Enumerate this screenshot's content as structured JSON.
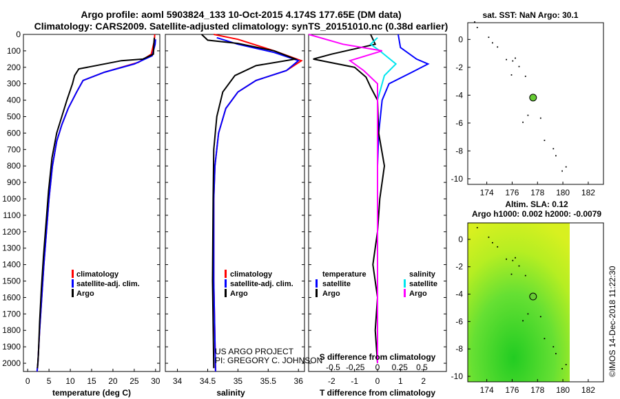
{
  "title_line1": "Argo profile: aoml 5903824_133 10-Oct-2015 4.174S 177.65E (DM data)",
  "title_line2": "Climatology: CARS2009. Satellite-adjusted climatology: synTS_20151010.nc (0.38d earlier)",
  "depth_ticks": [
    "0",
    "100",
    "200",
    "300",
    "400",
    "500",
    "600",
    "700",
    "800",
    "900",
    "1000",
    "1100",
    "1200",
    "1300",
    "1400",
    "1500",
    "1600",
    "1700",
    "1800",
    "1900",
    "2000"
  ],
  "colors": {
    "climatology": "#ff0000",
    "satellite": "#0000ff",
    "argo": "#000000",
    "sal_satellite": "#00e5ee",
    "sal_argo": "#ff00ff"
  },
  "watermark": "©IMOS 14-Dec-2018 11:22:30",
  "credit": {
    "line1": "US ARGO PROJECT",
    "line2": "PI: GREGORY C. JOHNSON"
  },
  "chart_data": [
    {
      "type": "line",
      "name": "temperature",
      "xlabel": "temperature (deg C)",
      "xlim": [
        -1,
        31
      ],
      "ylim": [
        0,
        2050
      ],
      "xticks": [
        0,
        5,
        10,
        15,
        20,
        25,
        30
      ],
      "legend": [
        "climatology",
        "satellite-adj. clim.",
        "Argo"
      ],
      "series": [
        {
          "name": "climatology",
          "points": [
            [
              29.8,
              0
            ],
            [
              29.7,
              40
            ],
            [
              29.0,
              120
            ],
            [
              26,
              170
            ],
            [
              18,
              230
            ],
            [
              13,
              280
            ],
            [
              11.5,
              350
            ],
            [
              9.5,
              450
            ],
            [
              8,
              550
            ],
            [
              6.8,
              650
            ],
            [
              5.8,
              800
            ],
            [
              5,
              1000
            ],
            [
              4.4,
              1200
            ],
            [
              3.8,
              1400
            ],
            [
              3.3,
              1600
            ],
            [
              2.8,
              1800
            ],
            [
              2.4,
              2000
            ],
            [
              2.2,
              2050
            ]
          ]
        },
        {
          "name": "satellite-adj. clim.",
          "points": [
            [
              30.0,
              30
            ],
            [
              29.9,
              60
            ],
            [
              29.2,
              130
            ],
            [
              25,
              180
            ],
            [
              18,
              230
            ],
            [
              13,
              280
            ],
            [
              11.5,
              350
            ],
            [
              9.5,
              450
            ],
            [
              8,
              550
            ],
            [
              6.8,
              650
            ],
            [
              5.8,
              800
            ],
            [
              5,
              1000
            ],
            [
              4.4,
              1200
            ],
            [
              3.8,
              1400
            ],
            [
              3.3,
              1600
            ],
            [
              2.8,
              1800
            ],
            [
              2.4,
              2000
            ],
            [
              2.2,
              2050
            ]
          ]
        },
        {
          "name": "Argo",
          "points": [
            [
              29.7,
              20
            ],
            [
              29.6,
              60
            ],
            [
              29.5,
              120
            ],
            [
              27,
              150
            ],
            [
              22,
              160
            ],
            [
              17,
              185
            ],
            [
              12,
              210
            ],
            [
              11,
              250
            ],
            [
              10.5,
              300
            ],
            [
              9.2,
              400
            ],
            [
              8,
              500
            ],
            [
              6.8,
              600
            ],
            [
              5.7,
              750
            ],
            [
              4.9,
              950
            ],
            [
              4.3,
              1150
            ],
            [
              3.7,
              1350
            ],
            [
              3.2,
              1550
            ],
            [
              2.8,
              1750
            ],
            [
              2.5,
              1950
            ],
            [
              2.3,
              2030
            ]
          ]
        }
      ]
    },
    {
      "type": "line",
      "name": "salinity",
      "xlabel": "salinity",
      "xlim": [
        33.8,
        36.1
      ],
      "ylim": [
        0,
        2050
      ],
      "xticks": [
        34,
        34.5,
        35,
        35.5,
        36
      ],
      "legend": [
        "climatology",
        "satellite-adj. clim.",
        "Argo"
      ],
      "series": [
        {
          "name": "climatology",
          "points": [
            [
              34.6,
              0
            ],
            [
              35.0,
              30
            ],
            [
              35.6,
              100
            ],
            [
              36.05,
              160
            ],
            [
              35.8,
              220
            ],
            [
              35.3,
              280
            ],
            [
              35.0,
              350
            ],
            [
              34.8,
              450
            ],
            [
              34.68,
              600
            ],
            [
              34.62,
              800
            ],
            [
              34.6,
              1000
            ],
            [
              34.6,
              1500
            ],
            [
              34.63,
              2050
            ]
          ]
        },
        {
          "name": "satellite-adj. clim.",
          "points": [
            [
              34.65,
              20
            ],
            [
              35.0,
              60
            ],
            [
              35.6,
              110
            ],
            [
              36.0,
              160
            ],
            [
              35.8,
              220
            ],
            [
              35.3,
              280
            ],
            [
              35.0,
              350
            ],
            [
              34.8,
              450
            ],
            [
              34.68,
              600
            ],
            [
              34.62,
              800
            ],
            [
              34.6,
              1000
            ],
            [
              34.6,
              1500
            ],
            [
              34.63,
              2050
            ]
          ]
        },
        {
          "name": "Argo",
          "points": [
            [
              34.4,
              0
            ],
            [
              34.5,
              35
            ],
            [
              35.0,
              55
            ],
            [
              35.6,
              100
            ],
            [
              35.95,
              150
            ],
            [
              35.3,
              190
            ],
            [
              34.95,
              250
            ],
            [
              34.75,
              350
            ],
            [
              34.65,
              500
            ],
            [
              34.6,
              700
            ],
            [
              34.59,
              1000
            ],
            [
              34.58,
              1500
            ],
            [
              34.6,
              2030
            ]
          ]
        }
      ]
    },
    {
      "type": "line",
      "name": "difference",
      "xlabel": "T difference from climatology",
      "xlabel2": "S difference from climatology",
      "xlim": [
        -3,
        3
      ],
      "ylim": [
        0,
        2050
      ],
      "xticks": [
        -2,
        -1,
        0,
        1,
        2
      ],
      "sticks": [
        -0.5,
        -0.25,
        0,
        0.25,
        0.5
      ],
      "legend": {
        "temperature_title": "temperature",
        "salinity_title": "salinity",
        "t_items": [
          "satellite",
          "Argo"
        ],
        "s_items": [
          "satellite",
          "Argo"
        ]
      },
      "series": [
        {
          "name": "T satellite",
          "points": [
            [
              0.9,
              0
            ],
            [
              1.0,
              80
            ],
            [
              1.7,
              150
            ],
            [
              2.2,
              180
            ],
            [
              1.5,
              230
            ],
            [
              0.5,
              300
            ],
            [
              0.2,
              400
            ],
            [
              0.05,
              600
            ],
            [
              0,
              800
            ],
            [
              0,
              2000
            ]
          ]
        },
        {
          "name": "T Argo",
          "points": [
            [
              -0.3,
              0
            ],
            [
              -0.1,
              60
            ],
            [
              -2.0,
              120
            ],
            [
              -2.8,
              150
            ],
            [
              -1.0,
              200
            ],
            [
              -0.5,
              260
            ],
            [
              -0.3,
              320
            ],
            [
              0,
              400
            ],
            [
              0.05,
              600
            ],
            [
              0.3,
              800
            ],
            [
              0.1,
              1000
            ],
            [
              0,
              1200
            ],
            [
              -0.2,
              1400
            ],
            [
              0,
              1600
            ],
            [
              -0.1,
              1800
            ],
            [
              0,
              2000
            ]
          ]
        },
        {
          "name": "S satellite",
          "points": [
            [
              0,
              20
            ],
            [
              -0.3,
              60
            ],
            [
              0.1,
              100
            ],
            [
              0.8,
              180
            ],
            [
              0.3,
              250
            ],
            [
              0,
              400
            ],
            [
              0,
              2000
            ]
          ]
        },
        {
          "name": "S Argo",
          "points": [
            [
              -3,
              0
            ],
            [
              -1.5,
              60
            ],
            [
              0.2,
              100
            ],
            [
              -1.2,
              160
            ],
            [
              -0.6,
              220
            ],
            [
              0,
              300
            ],
            [
              0,
              2000
            ]
          ]
        }
      ]
    },
    {
      "type": "scatter",
      "name": "sst_map",
      "title": "sat. SST: NaN Argo: 30.1",
      "xlim": [
        172.5,
        183.2
      ],
      "ylim": [
        -10.4,
        1.2
      ],
      "xticks": [
        174,
        176,
        178,
        180,
        182
      ],
      "yticks": [
        0,
        -2,
        -4,
        -6,
        -8,
        -10
      ],
      "marker": [
        177.65,
        -4.174
      ]
    },
    {
      "type": "heatmap",
      "name": "sla_map",
      "title1": "Altim. SLA: 0.12",
      "title2": "Argo h1000: 0.002 h2000: -0.0079",
      "xlim": [
        172.5,
        183.2
      ],
      "ylim": [
        -10.4,
        1.2
      ],
      "xticks": [
        174,
        176,
        178,
        180,
        182
      ],
      "yticks": [
        0,
        -2,
        -4,
        -6,
        -8,
        -10
      ],
      "marker": [
        177.65,
        -4.174
      ]
    }
  ]
}
